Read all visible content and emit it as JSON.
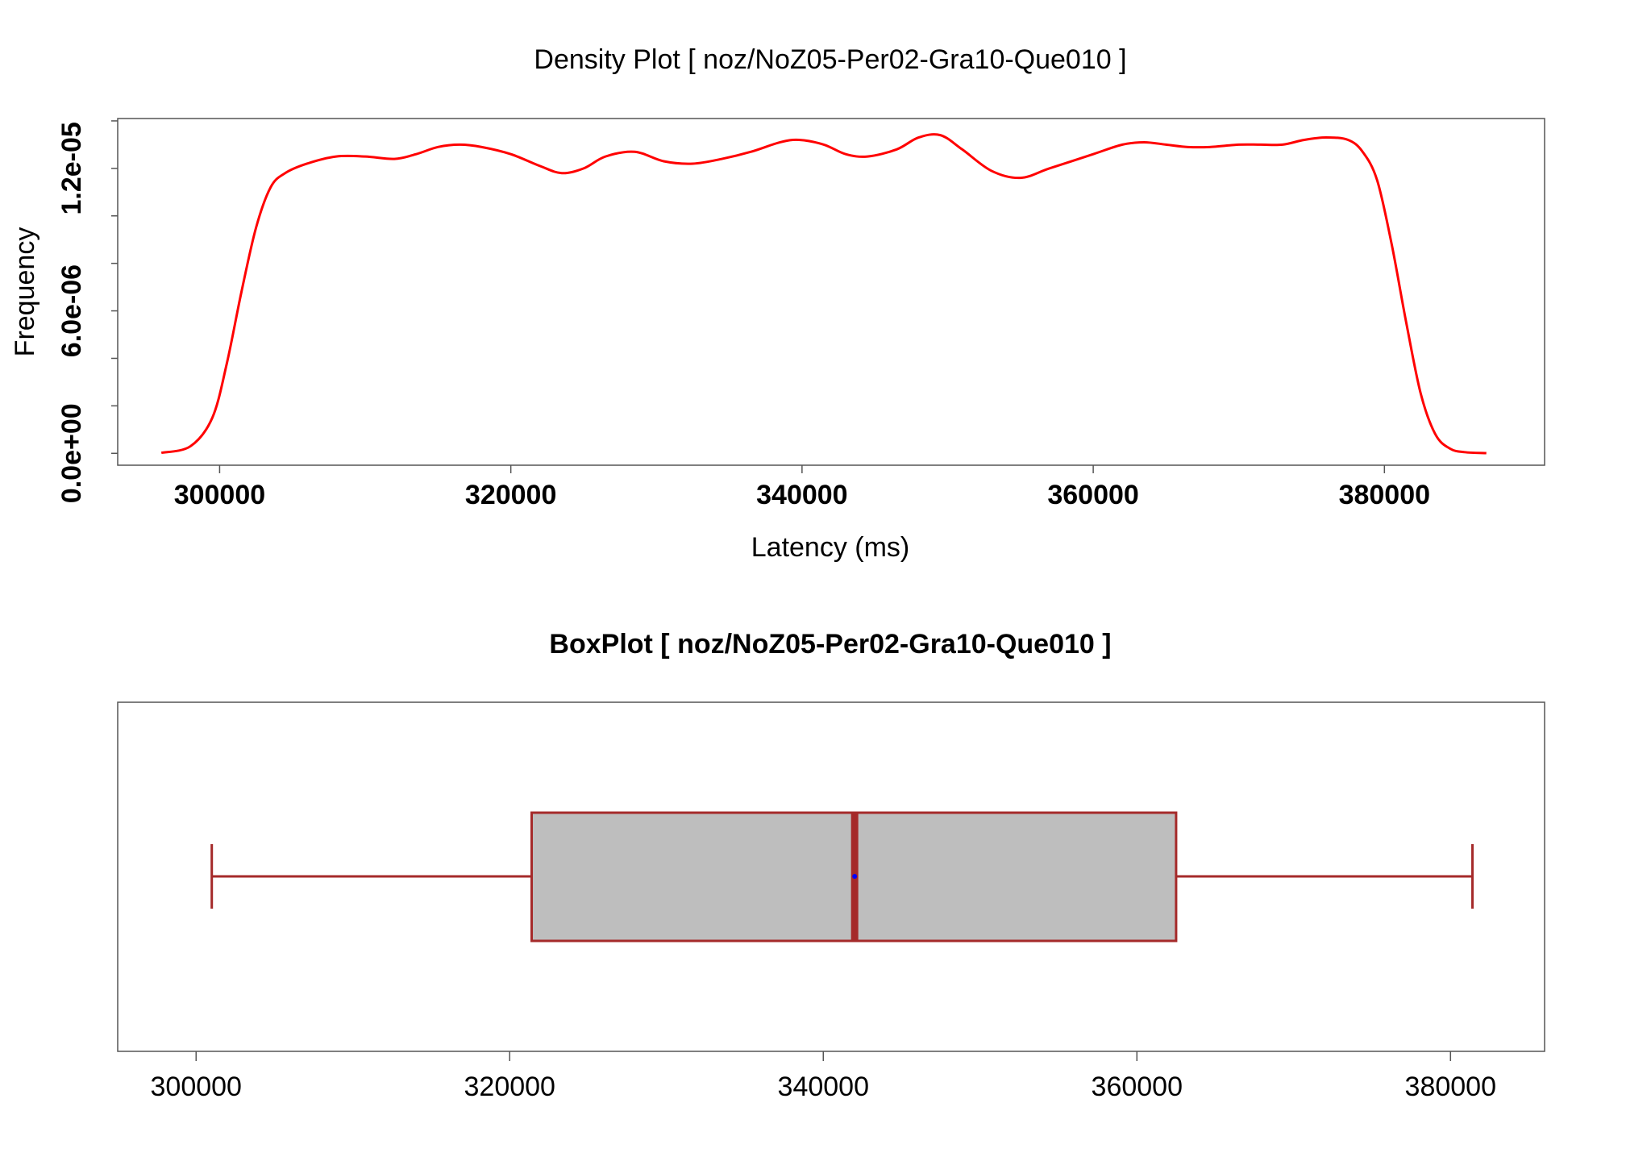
{
  "chart_data": [
    {
      "type": "line",
      "title": "Density Plot [ noz/NoZ05-Per02-Gra10-Que010 ]",
      "xlabel": "Latency (ms)",
      "ylabel": "Frequency",
      "xlim": [
        293000,
        391000
      ],
      "ylim": [
        -5e-07,
        1.41e-05
      ],
      "x_ticks": [
        300000,
        320000,
        340000,
        360000,
        380000
      ],
      "x_tick_labels": [
        "300000",
        "320000",
        "340000",
        "360000",
        "380000"
      ],
      "y_ticks": [
        0,
        2e-06,
        4e-06,
        6e-06,
        8e-06,
        1e-05,
        1.2e-05,
        1.4e-05
      ],
      "y_tick_labels": [
        "0.0e+00",
        "6.0e-06",
        "1.2e-05"
      ],
      "y_tick_label_values": [
        0,
        6e-06,
        1.2e-05
      ],
      "grid": false,
      "series": [
        {
          "color": "#ff0000",
          "x": [
            296000,
            298000,
            299500,
            300500,
            301500,
            302500,
            303500,
            304500,
            306000,
            308000,
            310000,
            312000,
            313500,
            315000,
            316500,
            318000,
            320000,
            322000,
            323500,
            325000,
            326500,
            328500,
            330500,
            332500,
            334500,
            336500,
            338500,
            339800,
            341500,
            343000,
            344500,
            346500,
            348000,
            349500,
            351000,
            353000,
            355000,
            357000,
            360000,
            362000,
            363500,
            365000,
            366500,
            368000,
            370000,
            371500,
            373000,
            374500,
            376000,
            377500,
            378500,
            379500,
            380500,
            381500,
            382500,
            383500,
            384500,
            385500,
            387000
          ],
          "y": [
            2e-08,
            3e-07,
            1.5e-06,
            3.8e-06,
            6.8e-06,
            9.5e-06,
            1.12e-05,
            1.18e-05,
            1.22e-05,
            1.25e-05,
            1.25e-05,
            1.24e-05,
            1.26e-05,
            1.29e-05,
            1.3e-05,
            1.29e-05,
            1.26e-05,
            1.21e-05,
            1.18e-05,
            1.2e-05,
            1.25e-05,
            1.27e-05,
            1.23e-05,
            1.22e-05,
            1.24e-05,
            1.27e-05,
            1.31e-05,
            1.32e-05,
            1.3e-05,
            1.26e-05,
            1.25e-05,
            1.28e-05,
            1.33e-05,
            1.34e-05,
            1.28e-05,
            1.19e-05,
            1.16e-05,
            1.2e-05,
            1.26e-05,
            1.3e-05,
            1.31e-05,
            1.3e-05,
            1.29e-05,
            1.29e-05,
            1.3e-05,
            1.3e-05,
            1.3e-05,
            1.32e-05,
            1.33e-05,
            1.32e-05,
            1.27e-05,
            1.15e-05,
            8.8e-06,
            5.5e-06,
            2.5e-06,
            8e-07,
            2e-07,
            5e-08,
            1e-08
          ]
        }
      ]
    },
    {
      "type": "box",
      "title": "BoxPlot [ noz/NoZ05-Per02-Gra10-Que010 ]",
      "xlim": [
        295000,
        386000
      ],
      "x_ticks": [
        300000,
        320000,
        340000,
        360000,
        380000
      ],
      "x_tick_labels": [
        "300000",
        "320000",
        "340000",
        "360000",
        "380000"
      ],
      "grid": false,
      "box": {
        "whisker_low": 301000,
        "q1": 321400,
        "median": 342000,
        "q3": 362500,
        "whisker_high": 381400,
        "mean": 342000
      },
      "colors": {
        "box_fill": "#bebebe",
        "box_border": "#a52a2a",
        "median": "#a52a2a",
        "mean": "#0000ff"
      }
    }
  ]
}
